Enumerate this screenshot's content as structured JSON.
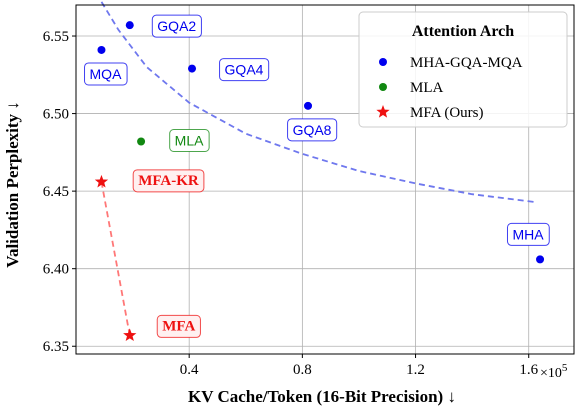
{
  "chart_data": {
    "type": "scatter",
    "xlabel": "KV Cache/Token (16-Bit Precision) ↓",
    "ylabel": "Validation Perplexity ↓",
    "x_scale_label": "×10",
    "x_scale_exponent": "5",
    "xlim": [
      0.0,
      1.76
    ],
    "ylim": [
      6.345,
      6.57
    ],
    "xticks": [
      0.4,
      0.8,
      1.2,
      1.6
    ],
    "xtick_labels": [
      "0.4",
      "0.8",
      "1.2",
      "1.6"
    ],
    "yticks": [
      6.35,
      6.4,
      6.45,
      6.5,
      6.55
    ],
    "ytick_labels": [
      "6.35",
      "6.40",
      "6.45",
      "6.50",
      "6.55"
    ],
    "grid": true,
    "legend": {
      "title": "Attention Arch",
      "placement": "top-right",
      "entries": [
        {
          "label": "MHA-GQA-MQA",
          "color": "#0000ee",
          "marker": "circle"
        },
        {
          "label": "MLA",
          "color": "#118811",
          "marker": "circle"
        },
        {
          "label": "MFA (Ours)",
          "color": "#ee1111",
          "marker": "star"
        }
      ]
    },
    "series": [
      {
        "name": "MHA-GQA-MQA",
        "color": "#0000ee",
        "marker": "circle",
        "points": [
          {
            "label": "MQA",
            "x": 0.09,
            "y": 6.541
          },
          {
            "label": "GQA2",
            "x": 0.19,
            "y": 6.557
          },
          {
            "label": "GQA4",
            "x": 0.41,
            "y": 6.529
          },
          {
            "label": "GQA8",
            "x": 0.82,
            "y": 6.505
          },
          {
            "label": "MHA",
            "x": 1.64,
            "y": 6.406
          }
        ]
      },
      {
        "name": "MLA",
        "color": "#118811",
        "marker": "circle",
        "points": [
          {
            "label": "MLA",
            "x": 0.23,
            "y": 6.482
          }
        ]
      },
      {
        "name": "MFA (Ours)",
        "color": "#ee1111",
        "marker": "star",
        "points": [
          {
            "label": "MFA-KR",
            "x": 0.09,
            "y": 6.456
          },
          {
            "label": "MFA",
            "x": 0.19,
            "y": 6.357
          }
        ]
      }
    ],
    "trend_curve": {
      "color": "#6f78ee",
      "style": "dashed",
      "points": [
        [
          0.09,
          6.572
        ],
        [
          0.15,
          6.554
        ],
        [
          0.25,
          6.53
        ],
        [
          0.4,
          6.507
        ],
        [
          0.6,
          6.487
        ],
        [
          0.8,
          6.474
        ],
        [
          1.0,
          6.463
        ],
        [
          1.2,
          6.455
        ],
        [
          1.4,
          6.448
        ],
        [
          1.62,
          6.443
        ]
      ]
    },
    "mfa_link": {
      "color": "#ff7777",
      "style": "dashed",
      "from": [
        0.09,
        6.456
      ],
      "to": [
        0.19,
        6.357
      ]
    }
  }
}
